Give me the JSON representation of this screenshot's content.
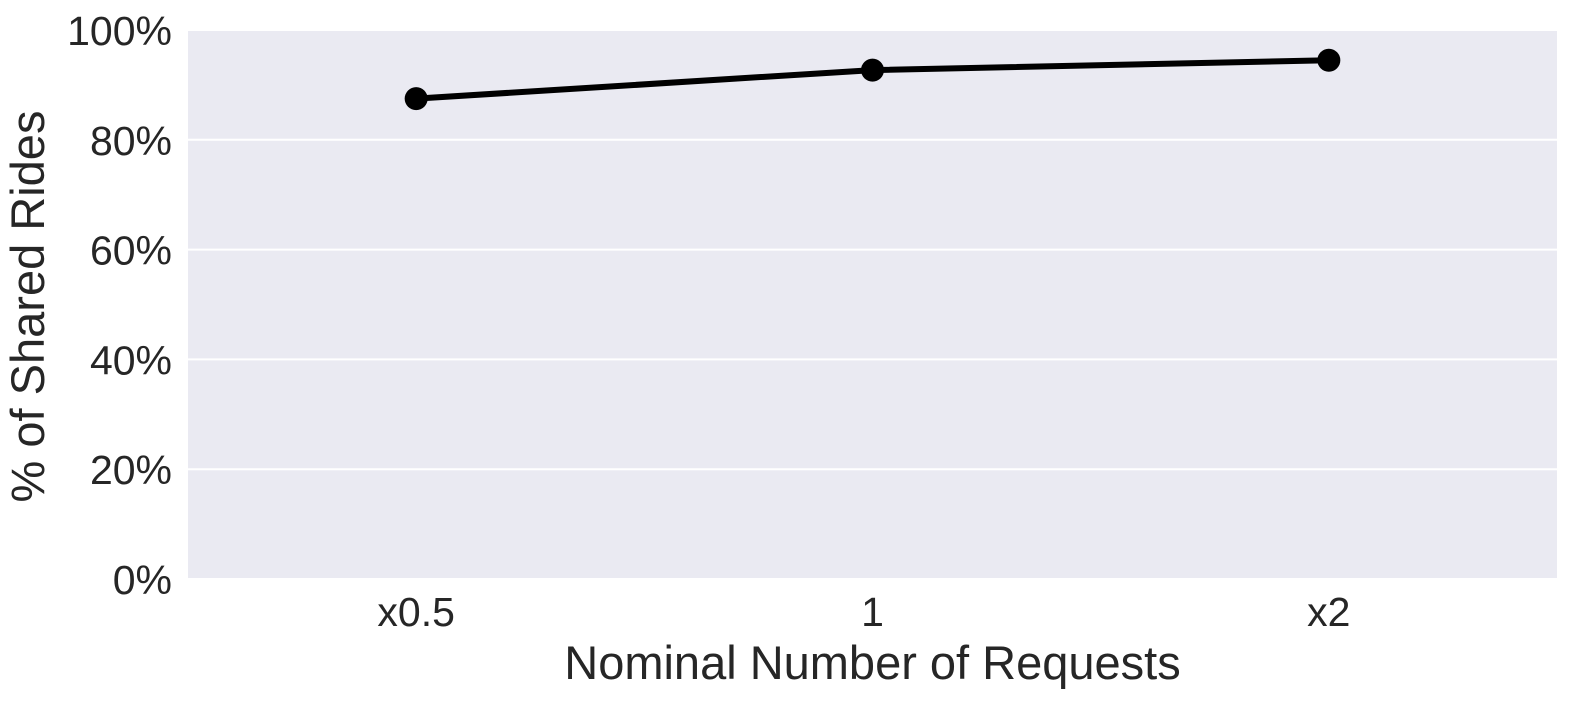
{
  "chart_data": {
    "type": "line",
    "title": "",
    "xlabel": "Nominal Number of Requests",
    "ylabel": "% of Shared Rides",
    "categories": [
      "x0.5",
      "1",
      "x2"
    ],
    "series": [
      {
        "values": [
          87.5,
          92.7,
          94.5
        ]
      }
    ],
    "ylim": [
      0,
      100
    ],
    "yticks": [
      0,
      20,
      40,
      60,
      80,
      100
    ],
    "ytick_labels": [
      "0%",
      "20%",
      "40%",
      "60%",
      "80%",
      "100%"
    ],
    "grid": true,
    "legend": "none",
    "colors": {
      "plot_background": "#eaeaf2",
      "gridline": "#ffffff",
      "series": "#000000",
      "text": "#262626"
    }
  }
}
